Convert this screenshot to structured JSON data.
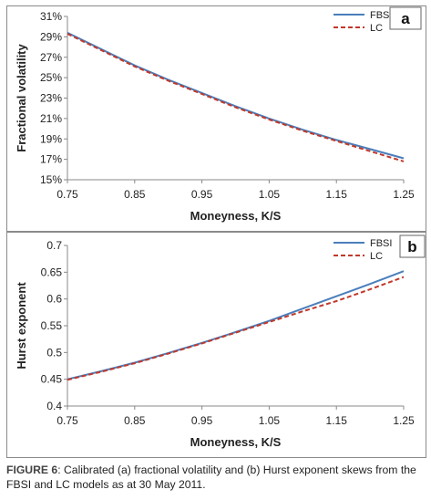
{
  "caption": {
    "label": "FIGURE 6",
    "text": ": Calibrated (a) fractional volatility and (b) Hurst exponent skews from the FBSI and LC models as at 30 May 2011."
  },
  "colors": {
    "FBSI": "#4a7ebb",
    "LC": "#c0392b"
  },
  "chart_data": [
    {
      "type": "line",
      "panel_label": "a",
      "xlabel": "Moneyness, K/S",
      "ylabel": "Fractional volatility",
      "xlim": [
        0.75,
        1.25
      ],
      "ylim": [
        0.15,
        0.31
      ],
      "x_ticks": [
        "0.75",
        "0.85",
        "0.95",
        "1.05",
        "1.15",
        "1.25"
      ],
      "y_ticks": [
        "15%",
        "17%",
        "19%",
        "21%",
        "23%",
        "25%",
        "27%",
        "29%",
        "31%"
      ],
      "legend_position": "top-right",
      "x": [
        0.75,
        0.8,
        0.85,
        0.9,
        0.95,
        1.0,
        1.05,
        1.1,
        1.15,
        1.2,
        1.25
      ],
      "series": [
        {
          "name": "FBSI",
          "values": [
            0.294,
            0.278,
            0.262,
            0.248,
            0.235,
            0.222,
            0.21,
            0.199,
            0.189,
            0.18,
            0.171
          ],
          "style": "solid"
        },
        {
          "name": "LC",
          "values": [
            0.293,
            0.277,
            0.261,
            0.247,
            0.234,
            0.221,
            0.209,
            0.198,
            0.188,
            0.178,
            0.168
          ],
          "style": "dashed"
        }
      ]
    },
    {
      "type": "line",
      "panel_label": "b",
      "xlabel": "Moneyness, K/S",
      "ylabel": "Hurst exponent",
      "xlim": [
        0.75,
        1.25
      ],
      "ylim": [
        0.4,
        0.7
      ],
      "x_ticks": [
        "0.75",
        "0.85",
        "0.95",
        "1.05",
        "1.15",
        "1.25"
      ],
      "y_ticks": [
        "0.4",
        "0.45",
        "0.5",
        "0.55",
        "0.6",
        "0.65",
        "0.7"
      ],
      "legend_position": "top-right",
      "x": [
        0.75,
        0.8,
        0.85,
        0.9,
        0.95,
        1.0,
        1.05,
        1.1,
        1.15,
        1.2,
        1.25
      ],
      "series": [
        {
          "name": "FBSI",
          "values": [
            0.45,
            0.465,
            0.481,
            0.499,
            0.518,
            0.538,
            0.559,
            0.582,
            0.605,
            0.628,
            0.652
          ],
          "style": "solid"
        },
        {
          "name": "LC",
          "values": [
            0.449,
            0.464,
            0.48,
            0.498,
            0.517,
            0.537,
            0.557,
            0.577,
            0.596,
            0.618,
            0.641
          ],
          "style": "dashed"
        }
      ]
    }
  ]
}
